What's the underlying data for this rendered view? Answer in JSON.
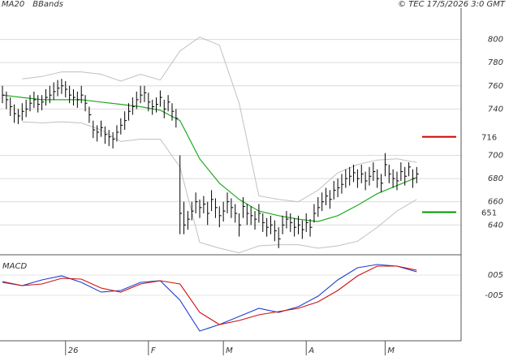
{
  "chart_data": {
    "type": "ohlc",
    "credit": "© TEC 17/5/2026 3:0 GMT",
    "categories": [
      null,
      null,
      null,
      null,
      null,
      null,
      null,
      null,
      null,
      null,
      null,
      null,
      null,
      null,
      null,
      null,
      "26",
      null,
      null,
      null,
      null,
      null,
      null,
      null,
      null,
      null,
      null,
      null,
      null,
      null,
      null,
      null,
      null,
      null,
      null,
      null,
      null,
      "F",
      null,
      null,
      null,
      null,
      null,
      null,
      null,
      null,
      null,
      null,
      null,
      null,
      null,
      null,
      null,
      null,
      null,
      null,
      "M",
      null,
      null,
      null,
      null,
      null,
      null,
      null,
      null,
      null,
      null,
      null,
      null,
      null,
      null,
      null,
      null,
      null,
      null,
      null,
      null,
      "A",
      null,
      null,
      null,
      null,
      null,
      null,
      null,
      null,
      null,
      null,
      null,
      null,
      null,
      null,
      null,
      null,
      null,
      null,
      null,
      "M",
      null,
      null,
      null,
      null,
      null,
      null,
      null,
      null
    ],
    "close": [
      752,
      748,
      742,
      736,
      734,
      738,
      740,
      745,
      748,
      744,
      746,
      750,
      752,
      755,
      758,
      760,
      757,
      752,
      750,
      748,
      752,
      745,
      735,
      722,
      720,
      724,
      718,
      716,
      714,
      720,
      726,
      730,
      738,
      742,
      748,
      752,
      754,
      746,
      742,
      744,
      750,
      740,
      746,
      738,
      732,
      650,
      640,
      645,
      652,
      660,
      655,
      658,
      650,
      662,
      655,
      648,
      652,
      660,
      655,
      650,
      640,
      656,
      650,
      648,
      645,
      650,
      642,
      638,
      640,
      635,
      628,
      640,
      645,
      642,
      638,
      640,
      636,
      642,
      638,
      650,
      655,
      660,
      665,
      662,
      670,
      672,
      675,
      680,
      682,
      685,
      680,
      684,
      678,
      682,
      686,
      680,
      676,
      692,
      684,
      680,
      678,
      686,
      682,
      690,
      680,
      684
    ],
    "high": [
      760,
      755,
      750,
      744,
      740,
      745,
      748,
      752,
      755,
      752,
      752,
      757,
      760,
      763,
      765,
      766,
      764,
      760,
      757,
      755,
      760,
      752,
      742,
      730,
      726,
      730,
      725,
      722,
      720,
      726,
      732,
      738,
      745,
      750,
      755,
      760,
      760,
      754,
      748,
      750,
      756,
      748,
      752,
      745,
      740,
      700,
      660,
      652,
      660,
      668,
      662,
      665,
      660,
      670,
      663,
      656,
      660,
      668,
      663,
      658,
      650,
      664,
      658,
      656,
      652,
      658,
      650,
      646,
      648,
      644,
      638,
      648,
      652,
      650,
      646,
      648,
      644,
      650,
      645,
      658,
      664,
      668,
      672,
      670,
      678,
      680,
      684,
      688,
      690,
      692,
      688,
      692,
      686,
      690,
      694,
      688,
      684,
      702,
      692,
      688,
      686,
      694,
      690,
      694,
      688,
      690
    ],
    "low": [
      745,
      740,
      734,
      728,
      727,
      730,
      733,
      738,
      741,
      737,
      739,
      743,
      745,
      748,
      751,
      753,
      750,
      745,
      743,
      741,
      745,
      738,
      728,
      715,
      712,
      716,
      710,
      708,
      706,
      712,
      718,
      722,
      730,
      735,
      740,
      745,
      746,
      738,
      735,
      737,
      742,
      732,
      738,
      730,
      724,
      632,
      632,
      636,
      644,
      650,
      646,
      650,
      640,
      652,
      646,
      638,
      643,
      650,
      646,
      642,
      630,
      646,
      640,
      640,
      636,
      642,
      634,
      630,
      632,
      626,
      620,
      632,
      637,
      634,
      630,
      632,
      628,
      634,
      630,
      642,
      647,
      652,
      657,
      654,
      662,
      664,
      667,
      672,
      674,
      677,
      672,
      676,
      670,
      674,
      678,
      672,
      668,
      682,
      676,
      672,
      670,
      678,
      674,
      682,
      672,
      676
    ],
    "color": "#000000",
    "ylim": [
      615,
      827
    ],
    "yticks": [
      640,
      660,
      680,
      700,
      740,
      760,
      780,
      800
    ],
    "grid": true,
    "lines": {
      "x": [
        0,
        5,
        10,
        15,
        20,
        25,
        30,
        35,
        40,
        45,
        50,
        55,
        60,
        65,
        70,
        75,
        80,
        85,
        90,
        95,
        100,
        105
      ],
      "series": [
        {
          "name": "MA20",
          "color": "#22aa22",
          "values": [
            752,
            750,
            748,
            748,
            748,
            746,
            744,
            742,
            739,
            730,
            697,
            676,
            662,
            652,
            648,
            645,
            643,
            648,
            657,
            667,
            674,
            681
          ]
        },
        {
          "name": "BBands",
          "color": "#c0c0c0",
          "upper": [
            null,
            766,
            768,
            772,
            772,
            770,
            764,
            770,
            765,
            790,
            802,
            795,
            745,
            665,
            662,
            660,
            670,
            685,
            692,
            696,
            697,
            694
          ],
          "lower": [
            null,
            729,
            728,
            729,
            728,
            722,
            712,
            714,
            714,
            690,
            625,
            620,
            616,
            622,
            623,
            623,
            620,
            622,
            626,
            638,
            652,
            662
          ]
        }
      ]
    },
    "levels": [
      {
        "value": 716,
        "color": "#cc0000"
      },
      {
        "value": 651,
        "color": "#009900"
      }
    ],
    "macd": {
      "title": "MACD",
      "ylim": [
        -27.4,
        14.6
      ],
      "yticks": [
        {
          "value": 5,
          "label": "005"
        },
        {
          "value": -5,
          "label": "-005"
        }
      ],
      "series": [
        {
          "color": "#1f3fd0",
          "values": [
            1.4,
            -0.2,
            2.6,
            4.6,
            1.4,
            -3.4,
            -2.6,
            1.4,
            2.2,
            -7.4,
            -22.6,
            -19.4,
            -15.4,
            -11.4,
            -13.4,
            -10.6,
            -5.4,
            2.6,
            8.6,
            10.2,
            9.4,
            6.6
          ]
        },
        {
          "color": "#cc1111",
          "values": [
            1.8,
            -0.2,
            0.6,
            3.4,
            3.0,
            -1.4,
            -3.4,
            0.6,
            2.2,
            0.6,
            -13.4,
            -19.4,
            -17.4,
            -14.6,
            -13.0,
            -11.4,
            -8.2,
            -2.6,
            4.6,
            9.4,
            9.4,
            7.4
          ]
        }
      ]
    }
  }
}
